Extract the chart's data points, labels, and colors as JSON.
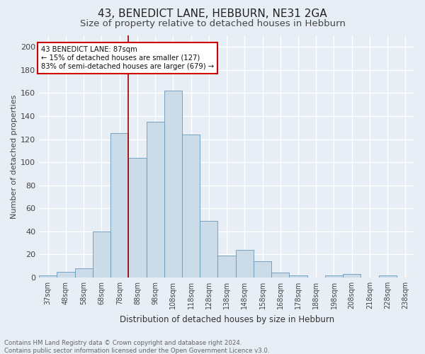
{
  "title": "43, BENEDICT LANE, HEBBURN, NE31 2GA",
  "subtitle": "Size of property relative to detached houses in Hebburn",
  "xlabel": "Distribution of detached houses by size in Hebburn",
  "ylabel": "Number of detached properties",
  "footer_line1": "Contains HM Land Registry data © Crown copyright and database right 2024.",
  "footer_line2": "Contains public sector information licensed under the Open Government Licence v3.0.",
  "bar_labels": [
    "37sqm",
    "48sqm",
    "58sqm",
    "68sqm",
    "78sqm",
    "88sqm",
    "98sqm",
    "108sqm",
    "118sqm",
    "128sqm",
    "138sqm",
    "148sqm",
    "158sqm",
    "168sqm",
    "178sqm",
    "188sqm",
    "198sqm",
    "208sqm",
    "218sqm",
    "228sqm",
    "238sqm"
  ],
  "bar_values": [
    2,
    5,
    8,
    40,
    125,
    104,
    135,
    162,
    124,
    49,
    19,
    24,
    14,
    4,
    2,
    0,
    2,
    3,
    0,
    2,
    0
  ],
  "bar_color": "#ccdbe8",
  "bar_edge_color": "#6699bb",
  "vline_color": "#990000",
  "annotation_title": "43 BENEDICT LANE: 87sqm",
  "annotation_line1": "← 15% of detached houses are smaller (127)",
  "annotation_line2": "83% of semi-detached houses are larger (679) →",
  "annotation_box_color": "#ffffff",
  "annotation_box_edge": "#cc0000",
  "yticks": [
    0,
    20,
    40,
    60,
    80,
    100,
    120,
    140,
    160,
    180,
    200
  ],
  "ylim": [
    0,
    210
  ],
  "background_color": "#e8eef5",
  "grid_color": "#ffffff",
  "title_fontsize": 11,
  "subtitle_fontsize": 9.5
}
